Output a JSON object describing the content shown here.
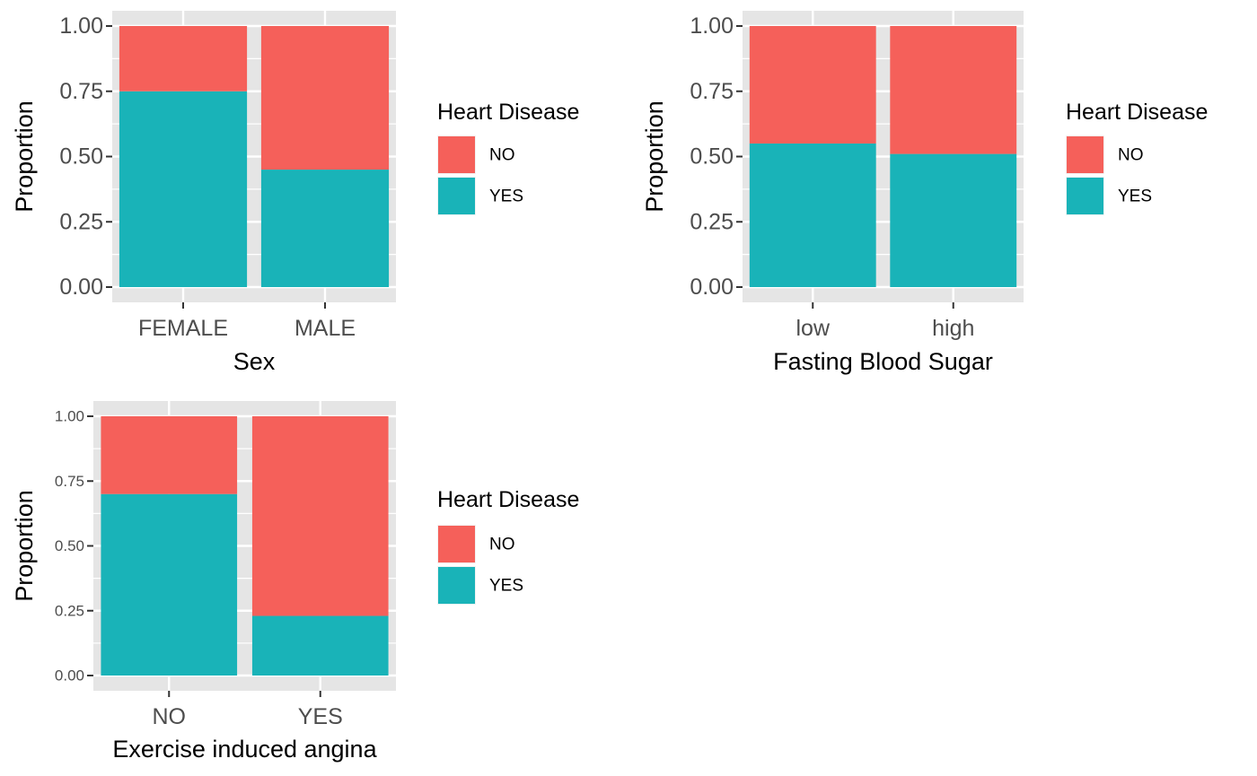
{
  "colors": {
    "no": "#F5605A",
    "yes": "#19B3B8",
    "panel_bg": "#E5E5E5",
    "grid": "#FFFFFF",
    "tick_text": "#4D4D4D"
  },
  "chart_data": [
    {
      "type": "bar",
      "stacked": true,
      "categories": [
        "FEMALE",
        "MALE"
      ],
      "series": [
        {
          "name": "YES",
          "values": [
            0.75,
            0.45
          ]
        },
        {
          "name": "NO",
          "values": [
            0.25,
            0.55
          ]
        }
      ],
      "title": "",
      "xlabel": "Sex",
      "ylabel": "Proportion",
      "ylim": [
        0,
        1
      ],
      "y_ticks": [
        "0.00",
        "0.25",
        "0.50",
        "0.75",
        "1.00"
      ],
      "grid": true,
      "legend": {
        "title": "Heart Disease",
        "placement": "right",
        "entries": [
          "NO",
          "YES"
        ]
      }
    },
    {
      "type": "bar",
      "stacked": true,
      "categories": [
        "low",
        "high"
      ],
      "series": [
        {
          "name": "YES",
          "values": [
            0.55,
            0.51
          ]
        },
        {
          "name": "NO",
          "values": [
            0.45,
            0.49
          ]
        }
      ],
      "title": "",
      "xlabel": "Fasting Blood Sugar",
      "ylabel": "Proportion",
      "ylim": [
        0,
        1
      ],
      "y_ticks": [
        "0.00",
        "0.25",
        "0.50",
        "0.75",
        "1.00"
      ],
      "grid": true,
      "legend": {
        "title": "Heart Disease",
        "placement": "right",
        "entries": [
          "NO",
          "YES"
        ]
      }
    },
    {
      "type": "bar",
      "stacked": true,
      "categories": [
        "NO",
        "YES"
      ],
      "series": [
        {
          "name": "YES",
          "values": [
            0.7,
            0.23
          ]
        },
        {
          "name": "NO",
          "values": [
            0.3,
            0.77
          ]
        }
      ],
      "title": "",
      "xlabel": "Exercise induced angina",
      "ylabel": "Proportion",
      "ylim": [
        0,
        1
      ],
      "y_ticks": [
        "0.00",
        "0.25",
        "0.50",
        "0.75",
        "1.00"
      ],
      "grid": true,
      "legend": {
        "title": "Heart Disease",
        "placement": "right",
        "entries": [
          "NO",
          "YES"
        ]
      }
    }
  ]
}
